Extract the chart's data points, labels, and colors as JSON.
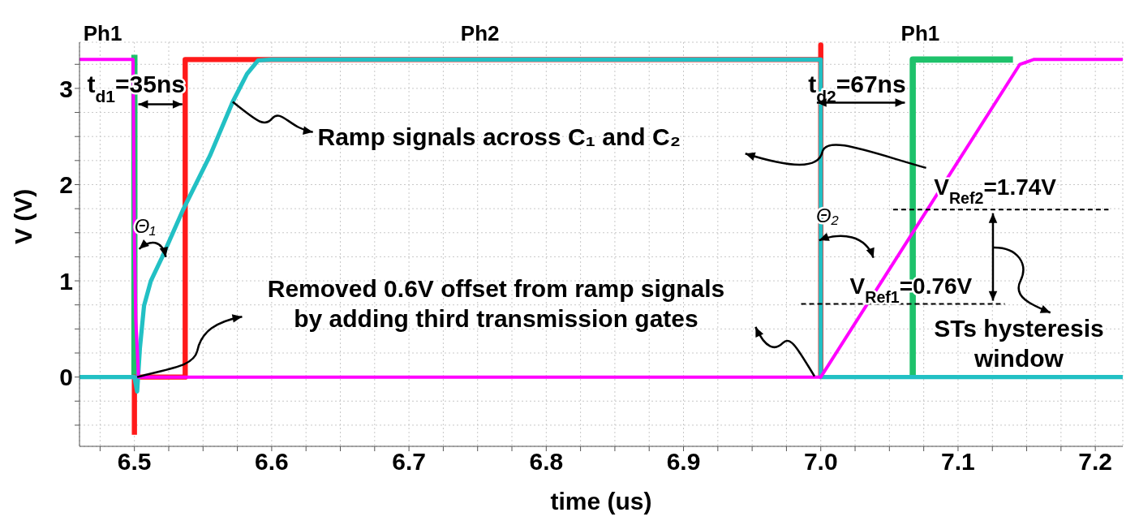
{
  "chart_data": {
    "type": "line",
    "xlabel": "time (us)",
    "ylabel": "V (V)",
    "xlim": [
      6.46,
      7.22
    ],
    "ylim": [
      -0.72,
      3.48
    ],
    "xticks": [
      {
        "value": 6.475,
        "label": null
      },
      6.5,
      {
        "value": 6.525,
        "label": null
      },
      {
        "value": 6.55,
        "label": null
      },
      {
        "value": 6.575,
        "label": null
      },
      6.6,
      {
        "value": 6.625,
        "label": null
      },
      {
        "value": 6.65,
        "label": null
      },
      {
        "value": 6.675,
        "label": null
      },
      6.7,
      {
        "value": 6.725,
        "label": null
      },
      {
        "value": 6.75,
        "label": null
      },
      {
        "value": 6.775,
        "label": null
      },
      6.8,
      {
        "value": 6.825,
        "label": null
      },
      {
        "value": 6.85,
        "label": null
      },
      {
        "value": 6.875,
        "label": null
      },
      6.9,
      {
        "value": 6.925,
        "label": null
      },
      {
        "value": 6.95,
        "label": null
      },
      {
        "value": 6.975,
        "label": null
      },
      {
        "value": 7.0,
        "label": "7.0"
      },
      {
        "value": 7.025,
        "label": null
      },
      {
        "value": 7.05,
        "label": null
      },
      {
        "value": 7.075,
        "label": null
      },
      7.1,
      {
        "value": 7.125,
        "label": null
      },
      {
        "value": 7.15,
        "label": null
      },
      {
        "value": 7.175,
        "label": null
      },
      7.2
    ],
    "yticks": [
      {
        "value": -0.5,
        "label": null
      },
      {
        "value": -0.25,
        "label": null
      },
      0,
      {
        "value": 0.25,
        "label": null
      },
      {
        "value": 0.5,
        "label": null
      },
      {
        "value": 0.75,
        "label": null
      },
      1,
      {
        "value": 1.25,
        "label": null
      },
      {
        "value": 1.5,
        "label": null
      },
      {
        "value": 1.75,
        "label": null
      },
      2,
      {
        "value": 2.25,
        "label": null
      },
      {
        "value": 2.5,
        "label": null
      },
      {
        "value": 2.75,
        "label": null
      },
      3,
      {
        "value": 3.25,
        "label": null
      }
    ],
    "grid": true,
    "marker": "none",
    "line_style": "solid",
    "legend": false,
    "series": [
      {
        "color": "#1ec26b",
        "x": [
          6.5,
          6.5,
          6.501,
          7.067,
          7.067,
          7.14
        ],
        "values": [
          3.35,
          0,
          null,
          0,
          3.3,
          3.3
        ]
      },
      {
        "color": "#ff1a1a",
        "x": [
          6.5,
          6.5,
          6.537,
          6.537,
          7.0,
          7.0,
          7.0
        ],
        "values": [
          -0.6,
          0,
          0,
          3.3,
          3.3,
          3.45,
          0
        ]
      },
      {
        "color": "#22c0c4",
        "x": [
          6.46,
          6.5,
          6.502,
          6.504,
          6.507,
          6.512,
          6.52,
          6.5355,
          6.555,
          6.5716,
          6.582,
          6.59,
          6.6,
          7.0,
          7.0,
          7.22
        ],
        "values": [
          0,
          0,
          -0.15,
          0.3,
          0.74,
          1.0,
          1.24,
          1.74,
          2.3,
          2.86,
          3.15,
          3.29,
          3.3,
          3.3,
          0,
          0
        ]
      },
      {
        "color": "#ff00ff",
        "x": [
          6.46,
          6.499,
          6.5,
          6.501,
          6.503,
          7.0,
          7.145,
          7.155,
          7.22
        ],
        "values": [
          3.3,
          3.3,
          1.4,
          0.6,
          0,
          0,
          3.25,
          3.3,
          3.3
        ]
      }
    ],
    "ref_lines": [
      {
        "axis": "y",
        "value": 1.74,
        "label": "V$_{Ref2}$=1.74V",
        "color": "#000000",
        "line_style": "dashed"
      },
      {
        "axis": "y",
        "value": 0.76,
        "label": "V$_{Ref1}$=0.76V",
        "color": "#000000",
        "line_style": "dashed"
      }
    ],
    "annotations": [
      "Ph1",
      "Ph2",
      "Ph1",
      "t$_{d1}$=35ns",
      "t$_{d2}$=67ns",
      "Θ₁",
      "Θ₂",
      {
        "text": "Ramp signals across C₁ and C₂",
        "x": 6.5716,
        "y": 2.86
      },
      {
        "text": "Removed 0.6V offset from ramp signals\nby adding third transmission gates",
        "x": 6.502,
        "y": 0
      },
      "STs hysteresis\nwindow"
    ]
  }
}
